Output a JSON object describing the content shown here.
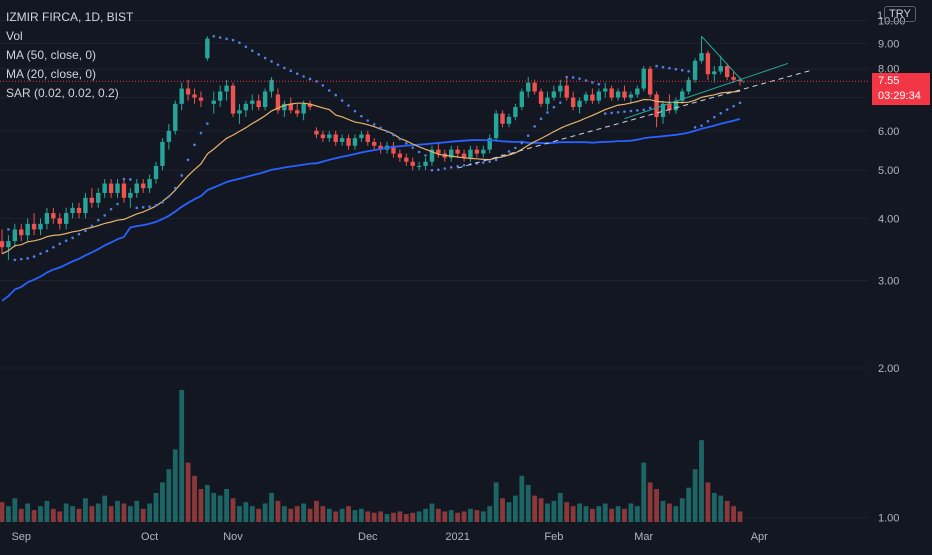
{
  "legend": {
    "symbol": "IZMIR FIRCA, 1D, BIST",
    "volume": "Vol",
    "ma50": "MA (50, close, 0)",
    "ma20": "MA (20, close, 0)",
    "sar": "SAR (0.02, 0.02, 0.2)"
  },
  "currency": "TRY",
  "last_price": {
    "value": "7.55",
    "countdown": "03:29:34"
  },
  "colors": {
    "background": "#131722",
    "up": "#26a69a",
    "down": "#ef5350",
    "ma50": "#2962ff",
    "ma20": "#e6b36b",
    "sar": "#4f7fe8",
    "last_price": "#f23645"
  },
  "chart_data": {
    "type": "candlestick",
    "y_axis": {
      "scale": "log",
      "range": [
        0.98,
        11
      ],
      "ticks": [
        1.0,
        2.0,
        3.0,
        4.0,
        5.0,
        6.0,
        7.0,
        8.0,
        9.0,
        10.0
      ],
      "tick_labels": [
        "1.00",
        "2.00",
        "3.00",
        "4.00",
        "5.00",
        "6.00",
        "7.00",
        "8.00",
        "9.00",
        "10.00"
      ],
      "top_label": "1"
    },
    "x_axis": {
      "ticks": [
        "Sep",
        "Oct",
        "Nov",
        "Dec",
        "2021",
        "Feb",
        "Mar",
        "Apr"
      ]
    },
    "candles": [
      [
        3.6,
        3.8,
        3.4,
        3.5
      ],
      [
        3.5,
        3.7,
        3.3,
        3.6
      ],
      [
        3.6,
        3.9,
        3.5,
        3.8
      ],
      [
        3.8,
        3.9,
        3.6,
        3.7
      ],
      [
        3.7,
        4.0,
        3.6,
        3.9
      ],
      [
        3.9,
        4.1,
        3.7,
        3.8
      ],
      [
        3.8,
        4.0,
        3.7,
        3.9
      ],
      [
        3.9,
        4.2,
        3.8,
        4.1
      ],
      [
        4.1,
        4.2,
        3.9,
        4.0
      ],
      [
        4.0,
        4.1,
        3.8,
        3.9
      ],
      [
        3.9,
        4.2,
        3.8,
        4.1
      ],
      [
        4.1,
        4.3,
        4.0,
        4.2
      ],
      [
        4.2,
        4.3,
        4.0,
        4.1
      ],
      [
        4.1,
        4.5,
        4.0,
        4.4
      ],
      [
        4.4,
        4.6,
        4.2,
        4.3
      ],
      [
        4.3,
        4.6,
        4.2,
        4.5
      ],
      [
        4.5,
        4.8,
        4.4,
        4.7
      ],
      [
        4.7,
        4.8,
        4.4,
        4.5
      ],
      [
        4.5,
        4.8,
        4.4,
        4.7
      ],
      [
        4.7,
        4.8,
        4.3,
        4.4
      ],
      [
        4.4,
        4.6,
        4.2,
        4.5
      ],
      [
        4.5,
        4.8,
        4.4,
        4.7
      ],
      [
        4.7,
        4.8,
        4.5,
        4.6
      ],
      [
        4.6,
        4.9,
        4.5,
        4.8
      ],
      [
        4.8,
        5.2,
        4.7,
        5.1
      ],
      [
        5.1,
        5.8,
        5.0,
        5.7
      ],
      [
        5.7,
        6.2,
        5.5,
        6.0
      ],
      [
        6.0,
        6.9,
        5.9,
        6.8
      ],
      [
        6.8,
        7.5,
        6.6,
        7.3
      ],
      [
        7.3,
        7.6,
        6.9,
        7.1
      ],
      [
        7.1,
        7.3,
        6.8,
        7.0
      ],
      [
        7.0,
        7.2,
        6.7,
        6.9
      ],
      [
        8.4,
        9.3,
        8.3,
        9.2
      ],
      [
        6.8,
        7.2,
        6.5,
        6.9
      ],
      [
        6.9,
        7.4,
        6.7,
        7.2
      ],
      [
        7.2,
        7.6,
        6.9,
        7.4
      ],
      [
        7.4,
        7.5,
        6.4,
        6.5
      ],
      [
        6.5,
        6.8,
        6.2,
        6.6
      ],
      [
        6.6,
        6.9,
        6.4,
        6.8
      ],
      [
        6.8,
        7.1,
        6.6,
        6.9
      ],
      [
        6.9,
        7.1,
        6.6,
        6.7
      ],
      [
        6.7,
        7.3,
        6.6,
        7.2
      ],
      [
        7.2,
        7.7,
        7.0,
        7.6
      ],
      [
        7.1,
        7.3,
        6.5,
        6.6
      ],
      [
        6.6,
        6.9,
        6.4,
        6.8
      ],
      [
        6.8,
        7.0,
        6.5,
        6.6
      ],
      [
        6.6,
        6.8,
        6.4,
        6.5
      ],
      [
        6.5,
        6.9,
        6.3,
        6.8
      ],
      [
        6.8,
        6.9,
        6.6,
        6.7
      ],
      [
        6.0,
        6.1,
        5.8,
        5.9
      ],
      [
        5.9,
        6.0,
        5.7,
        5.8
      ],
      [
        5.8,
        6.0,
        5.7,
        5.9
      ],
      [
        5.9,
        6.0,
        5.6,
        5.7
      ],
      [
        5.7,
        5.9,
        5.6,
        5.8
      ],
      [
        5.8,
        5.9,
        5.5,
        5.6
      ],
      [
        5.6,
        5.9,
        5.5,
        5.8
      ],
      [
        5.8,
        6.0,
        5.7,
        5.9
      ],
      [
        5.9,
        6.0,
        5.6,
        5.7
      ],
      [
        5.7,
        5.8,
        5.5,
        5.6
      ],
      [
        5.6,
        5.7,
        5.4,
        5.5
      ],
      [
        5.5,
        5.7,
        5.4,
        5.6
      ],
      [
        5.6,
        5.7,
        5.3,
        5.4
      ],
      [
        5.4,
        5.5,
        5.2,
        5.3
      ],
      [
        5.3,
        5.4,
        5.1,
        5.2
      ],
      [
        5.2,
        5.3,
        5.0,
        5.1
      ],
      [
        5.1,
        5.2,
        5.0,
        5.1
      ],
      [
        5.1,
        5.3,
        5.0,
        5.2
      ],
      [
        5.2,
        5.6,
        5.1,
        5.5
      ],
      [
        5.5,
        5.7,
        5.3,
        5.4
      ],
      [
        5.4,
        5.5,
        5.2,
        5.3
      ],
      [
        5.3,
        5.6,
        5.2,
        5.5
      ],
      [
        5.5,
        5.6,
        5.3,
        5.4
      ],
      [
        5.4,
        5.5,
        5.2,
        5.3
      ],
      [
        5.3,
        5.6,
        5.2,
        5.5
      ],
      [
        5.5,
        5.6,
        5.3,
        5.4
      ],
      [
        5.4,
        5.6,
        5.3,
        5.5
      ],
      [
        5.5,
        5.9,
        5.4,
        5.8
      ],
      [
        5.8,
        6.6,
        5.7,
        6.5
      ],
      [
        6.5,
        6.6,
        6.1,
        6.2
      ],
      [
        6.2,
        6.5,
        6.1,
        6.4
      ],
      [
        6.4,
        6.8,
        6.3,
        6.7
      ],
      [
        6.7,
        7.3,
        6.6,
        7.2
      ],
      [
        7.2,
        7.7,
        7.0,
        7.5
      ],
      [
        7.5,
        7.6,
        7.1,
        7.2
      ],
      [
        7.2,
        7.3,
        6.7,
        6.8
      ],
      [
        6.8,
        7.2,
        6.6,
        7.0
      ],
      [
        7.0,
        7.4,
        6.9,
        7.2
      ],
      [
        7.2,
        7.6,
        7.0,
        7.4
      ],
      [
        7.4,
        7.7,
        6.9,
        7.0
      ],
      [
        7.0,
        7.2,
        6.6,
        6.7
      ],
      [
        6.7,
        7.0,
        6.5,
        6.9
      ],
      [
        6.9,
        7.2,
        6.8,
        7.1
      ],
      [
        7.1,
        7.3,
        6.8,
        6.9
      ],
      [
        6.9,
        7.3,
        6.8,
        7.2
      ],
      [
        7.2,
        7.5,
        7.0,
        7.3
      ],
      [
        7.3,
        7.4,
        6.9,
        7.0
      ],
      [
        7.0,
        7.3,
        6.9,
        7.2
      ],
      [
        7.2,
        7.4,
        6.9,
        7.0
      ],
      [
        7.0,
        7.2,
        6.8,
        7.1
      ],
      [
        7.1,
        7.4,
        7.0,
        7.3
      ],
      [
        7.3,
        8.1,
        7.2,
        8.0
      ],
      [
        8.0,
        8.1,
        7.0,
        7.1
      ],
      [
        7.1,
        7.2,
        6.1,
        6.4
      ],
      [
        6.4,
        6.9,
        6.2,
        6.8
      ],
      [
        6.8,
        7.1,
        6.5,
        6.6
      ],
      [
        6.6,
        7.0,
        6.5,
        6.9
      ],
      [
        6.9,
        7.3,
        6.8,
        7.2
      ],
      [
        7.2,
        7.7,
        7.1,
        7.6
      ],
      [
        7.6,
        8.4,
        7.5,
        8.3
      ],
      [
        8.3,
        9.3,
        8.2,
        8.6
      ],
      [
        8.6,
        8.7,
        7.6,
        7.8
      ],
      [
        7.8,
        8.1,
        7.5,
        7.9
      ],
      [
        7.9,
        8.5,
        7.8,
        8.1
      ],
      [
        8.1,
        8.2,
        7.6,
        7.7
      ],
      [
        7.7,
        7.9,
        7.5,
        7.6
      ],
      [
        7.6,
        7.7,
        7.4,
        7.55
      ]
    ],
    "volume_relative": [
      0.15,
      0.12,
      0.18,
      0.1,
      0.14,
      0.09,
      0.12,
      0.16,
      0.1,
      0.08,
      0.14,
      0.12,
      0.1,
      0.18,
      0.12,
      0.14,
      0.2,
      0.12,
      0.16,
      0.14,
      0.12,
      0.16,
      0.1,
      0.14,
      0.22,
      0.3,
      0.4,
      0.55,
      1.0,
      0.45,
      0.35,
      0.25,
      0.28,
      0.22,
      0.2,
      0.25,
      0.18,
      0.12,
      0.15,
      0.12,
      0.1,
      0.14,
      0.22,
      0.16,
      0.12,
      0.1,
      0.12,
      0.14,
      0.1,
      0.16,
      0.12,
      0.1,
      0.08,
      0.1,
      0.12,
      0.09,
      0.1,
      0.08,
      0.07,
      0.08,
      0.06,
      0.07,
      0.08,
      0.06,
      0.07,
      0.08,
      0.1,
      0.14,
      0.1,
      0.08,
      0.09,
      0.07,
      0.08,
      0.1,
      0.09,
      0.08,
      0.12,
      0.3,
      0.18,
      0.15,
      0.2,
      0.35,
      0.28,
      0.2,
      0.18,
      0.14,
      0.16,
      0.22,
      0.15,
      0.12,
      0.14,
      0.12,
      0.1,
      0.12,
      0.14,
      0.1,
      0.12,
      0.1,
      0.14,
      0.12,
      0.45,
      0.3,
      0.25,
      0.16,
      0.14,
      0.12,
      0.18,
      0.26,
      0.4,
      0.62,
      0.3,
      0.22,
      0.2,
      0.16,
      0.12,
      0.08
    ]
  }
}
